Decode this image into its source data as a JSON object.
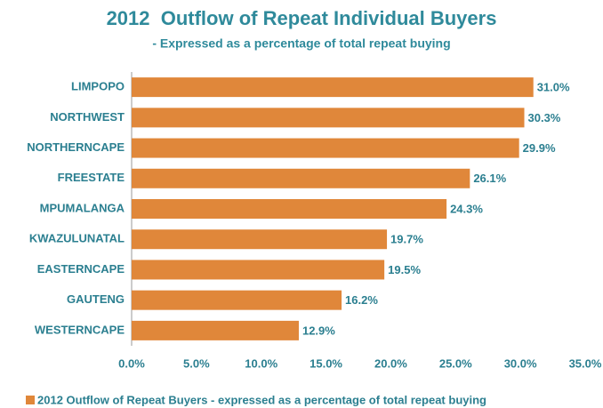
{
  "chart_data": {
    "type": "bar",
    "orientation": "horizontal",
    "title": "2012  Outflow of Repeat Individual Buyers",
    "subtitle": "- Expressed as a percentage of total repeat buying",
    "categories": [
      "LIMPOPO",
      "NORTHWEST",
      "NORTHERNCAPE",
      "FREESTATE",
      "MPUMALANGA",
      "KWAZULUNATAL",
      "EASTERNCAPE",
      "GAUTENG",
      "WESTERNCAPE"
    ],
    "series": [
      {
        "name": "2012 Outflow of Repeat Buyers - expressed as a percentage of total repeat buying",
        "color": "#e0873a",
        "values": [
          31.0,
          30.3,
          29.9,
          26.1,
          24.3,
          19.7,
          19.5,
          16.2,
          12.9
        ],
        "value_labels": [
          "31.0%",
          "30.3%",
          "29.9%",
          "26.1%",
          "24.3%",
          "19.7%",
          "19.5%",
          "16.2%",
          "12.9%"
        ]
      }
    ],
    "xlim": [
      0,
      35
    ],
    "xticks": [
      {
        "value": 0,
        "label": "0.0%"
      },
      {
        "value": 5,
        "label": "5.0%"
      },
      {
        "value": 10,
        "label": "10.0%"
      },
      {
        "value": 15,
        "label": "15.0%"
      },
      {
        "value": 20,
        "label": "20.0%"
      },
      {
        "value": 25,
        "label": "25.0%"
      },
      {
        "value": 30,
        "label": "30.0%"
      },
      {
        "value": 35,
        "label": "35.0%"
      }
    ],
    "grid": false,
    "legend": "bottom"
  }
}
